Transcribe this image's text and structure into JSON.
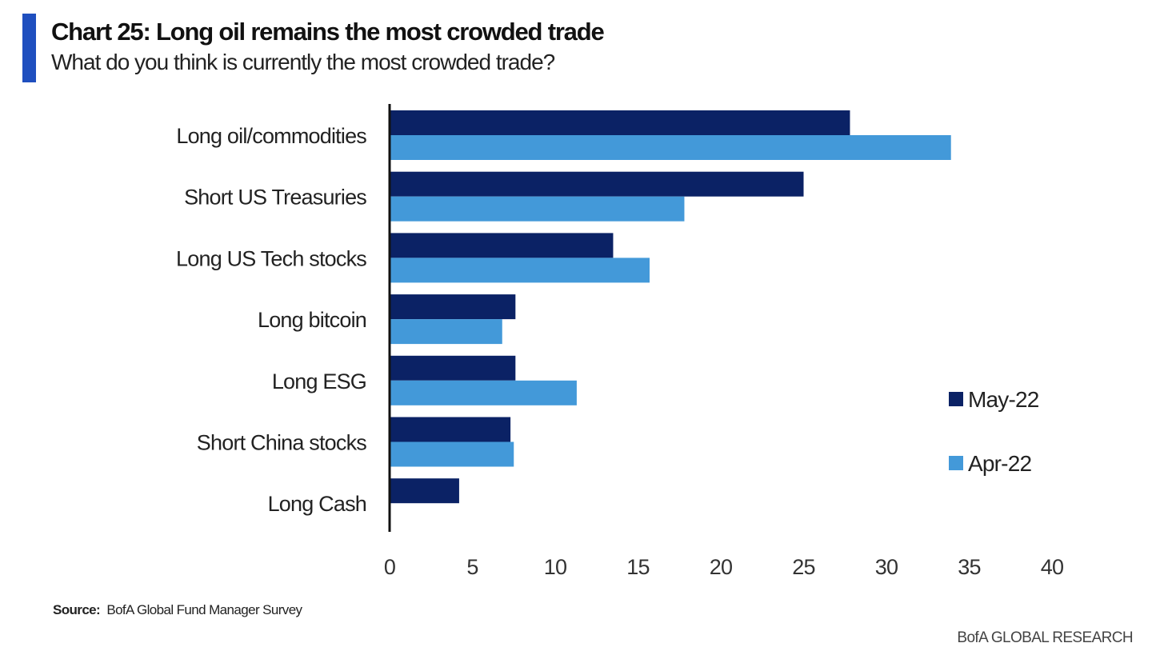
{
  "header": {
    "title": "Chart 25: Long oil remains the most crowded trade",
    "subtitle": "What do you think is currently the most crowded trade?"
  },
  "footer": {
    "source_label": "Source:",
    "source_text": "BofA Global Fund Manager Survey",
    "brand": "BofA GLOBAL RESEARCH"
  },
  "colors": {
    "accent": "#1f4fbf",
    "may": "#0b2265",
    "apr": "#4399d9",
    "axis": "#111111"
  },
  "chart_data": {
    "type": "bar",
    "orientation": "horizontal",
    "title": "Chart 25: Long oil remains the most crowded trade",
    "subtitle": "What do you think is currently the most crowded trade?",
    "xlabel": "",
    "ylabel": "",
    "xlim": [
      0,
      40
    ],
    "xticks": [
      0,
      5,
      10,
      15,
      20,
      25,
      30,
      35,
      40
    ],
    "grid": false,
    "legend_position": "right",
    "categories": [
      "Long oil/commodities",
      "Short US Treasuries",
      "Long US Tech stocks",
      "Long bitcoin",
      "Long ESG",
      "Short China stocks",
      "Long Cash"
    ],
    "series": [
      {
        "name": "May-22",
        "color": "#0b2265",
        "values": [
          27.8,
          25.0,
          13.5,
          7.6,
          7.6,
          7.3,
          4.2
        ]
      },
      {
        "name": "Apr-22",
        "color": "#4399d9",
        "values": [
          33.9,
          17.8,
          15.7,
          6.8,
          11.3,
          7.5,
          null
        ]
      }
    ]
  }
}
